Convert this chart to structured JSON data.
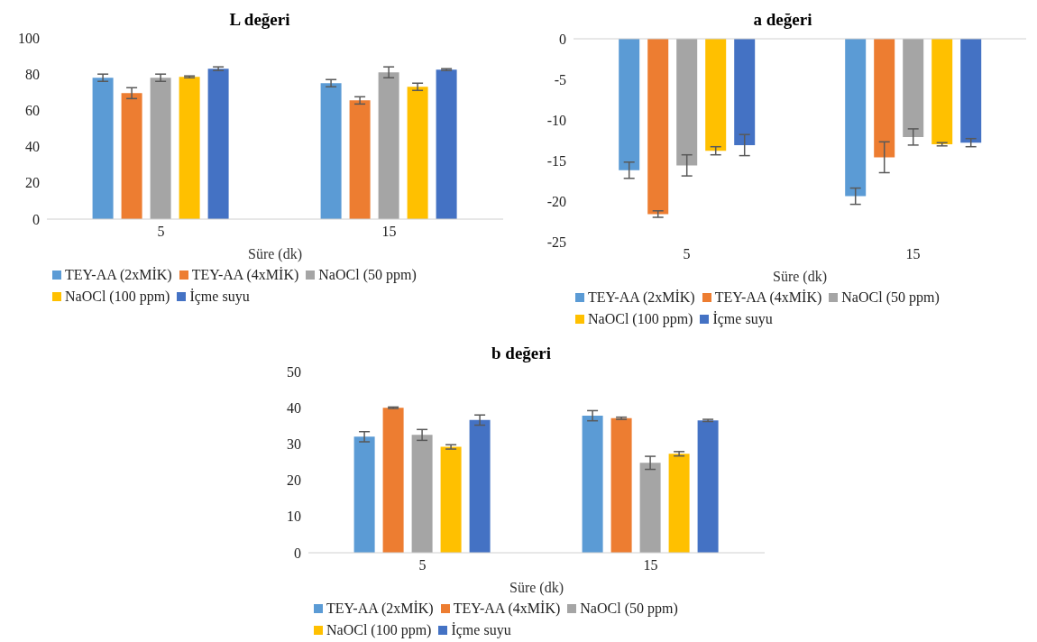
{
  "chart_data": [
    {
      "type": "bar",
      "title": "L değeri",
      "xlabel": "Süre (dk)",
      "categories": [
        "5",
        "15"
      ],
      "ylim": [
        0,
        100
      ],
      "yticks": [
        0,
        20,
        40,
        60,
        80,
        100
      ],
      "grid": false,
      "legend": "bottom",
      "series": [
        {
          "name": "TEY-AA (2xMİK)",
          "color": "#5b9bd5",
          "values": [
            78,
            75
          ],
          "errors": [
            2,
            2
          ]
        },
        {
          "name": "TEY-AA (4xMİK)",
          "color": "#ed7d31",
          "values": [
            69.5,
            65.5
          ],
          "errors": [
            3,
            2
          ]
        },
        {
          "name": "NaOCl (50 ppm)",
          "color": "#a5a5a5",
          "values": [
            78,
            81
          ],
          "errors": [
            2,
            3
          ]
        },
        {
          "name": "NaOCl (100 ppm)",
          "color": "#ffc000",
          "values": [
            78.5,
            73
          ],
          "errors": [
            0.5,
            2
          ]
        },
        {
          "name": "İçme suyu",
          "color": "#4472c4",
          "values": [
            83,
            82.5
          ],
          "errors": [
            1,
            0.5
          ]
        }
      ]
    },
    {
      "type": "bar",
      "title": "a değeri",
      "xlabel": "Süre (dk)",
      "categories": [
        "5",
        "15"
      ],
      "ylim": [
        -25,
        0
      ],
      "yticks": [
        -25,
        -20,
        -15,
        -10,
        -5,
        0
      ],
      "grid": false,
      "legend": "bottom",
      "series": [
        {
          "name": "TEY-AA (2xMİK)",
          "color": "#5b9bd5",
          "values": [
            -16.2,
            -19.4
          ],
          "errors": [
            1,
            1
          ]
        },
        {
          "name": "TEY-AA (4xMİK)",
          "color": "#ed7d31",
          "values": [
            -21.6,
            -14.6
          ],
          "errors": [
            0.4,
            1.9
          ]
        },
        {
          "name": "NaOCl (50 ppm)",
          "color": "#a5a5a5",
          "values": [
            -15.6,
            -12.1
          ],
          "errors": [
            1.3,
            1
          ]
        },
        {
          "name": "NaOCl (100 ppm)",
          "color": "#ffc000",
          "values": [
            -13.8,
            -13
          ],
          "errors": [
            0.5,
            0.2
          ]
        },
        {
          "name": "İçme suyu",
          "color": "#4472c4",
          "values": [
            -13.1,
            -12.8
          ],
          "errors": [
            1.3,
            0.5
          ]
        }
      ]
    },
    {
      "type": "bar",
      "title": "b değeri",
      "xlabel": "Süre (dk)",
      "categories": [
        "5",
        "15"
      ],
      "ylim": [
        0,
        50
      ],
      "yticks": [
        0,
        10,
        20,
        30,
        40,
        50
      ],
      "grid": false,
      "legend": "bottom",
      "series": [
        {
          "name": "TEY-AA (2xMİK)",
          "color": "#5b9bd5",
          "values": [
            32,
            37.8
          ],
          "errors": [
            1.4,
            1.4
          ]
        },
        {
          "name": "TEY-AA (4xMİK)",
          "color": "#ed7d31",
          "values": [
            40,
            37.1
          ],
          "errors": [
            0.2,
            0.3
          ]
        },
        {
          "name": "NaOCl (50 ppm)",
          "color": "#a5a5a5",
          "values": [
            32.5,
            24.8
          ],
          "errors": [
            1.5,
            1.8
          ]
        },
        {
          "name": "NaOCl (100 ppm)",
          "color": "#ffc000",
          "values": [
            29.2,
            27.3
          ],
          "errors": [
            0.6,
            0.6
          ]
        },
        {
          "name": "İçme suyu",
          "color": "#4472c4",
          "values": [
            36.6,
            36.5
          ],
          "errors": [
            1.4,
            0.3
          ]
        }
      ]
    }
  ]
}
